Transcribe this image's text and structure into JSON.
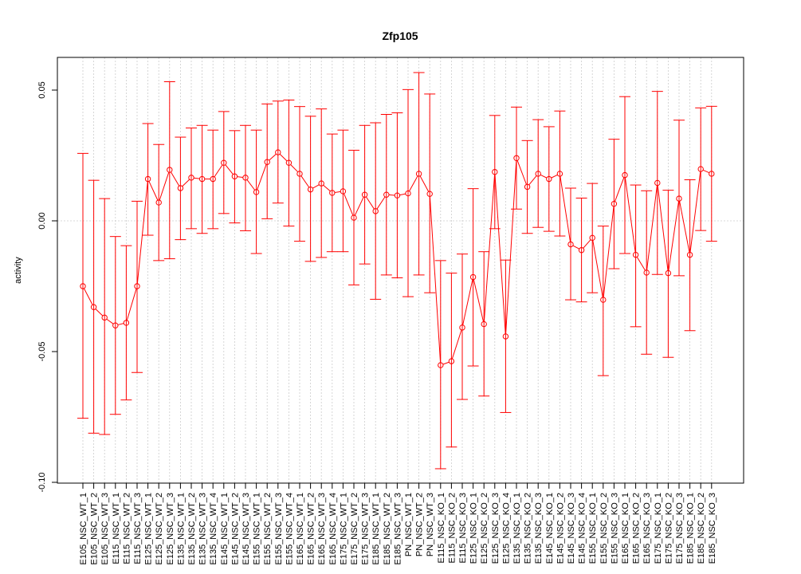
{
  "chart_data": {
    "type": "line",
    "title": "Zfp105",
    "xlabel": "",
    "ylabel": "activity",
    "ylim": [
      -0.1,
      0.06
    ],
    "yticks": [
      -0.1,
      -0.05,
      0.0,
      0.05
    ],
    "ytick_labels": [
      "-0.10",
      "-0.05",
      "0.00",
      "0.05"
    ],
    "grid": true,
    "colors": {
      "series": "#ff0000",
      "grid": "#cccccc",
      "axis": "#000000"
    },
    "categories": [
      "E105_NSC_WT_1",
      "E105_NSC_WT_2",
      "E105_NSC_WT_3",
      "E115_NSC_WT_1",
      "E115_NSC_WT_2",
      "E115_NSC_WT_3",
      "E125_NSC_WT_1",
      "E125_NSC_WT_2",
      "E125_NSC_WT_3",
      "E135_NSC_WT_1",
      "E135_NSC_WT_2",
      "E135_NSC_WT_3",
      "E135_NSC_WT_4",
      "E145_NSC_WT_1",
      "E145_NSC_WT_2",
      "E145_NSC_WT_3",
      "E155_NSC_WT_1",
      "E155_NSC_WT_2",
      "E155_NSC_WT_3",
      "E155_NSC_WT_4",
      "E165_NSC_WT_1",
      "E165_NSC_WT_2",
      "E165_NSC_WT_3",
      "E165_NSC_WT_4",
      "E175_NSC_WT_1",
      "E175_NSC_WT_2",
      "E175_NSC_WT_3",
      "E185_NSC_WT_1",
      "E185_NSC_WT_2",
      "E185_NSC_WT_3",
      "PN_NSC_WT_1",
      "PN_NSC_WT_2",
      "PN_NSC_WT_3",
      "E115_NSC_KO_1",
      "E115_NSC_KO_2",
      "E115_NSC_KO_3",
      "E125_NSC_KO_1",
      "E125_NSC_KO_2",
      "E125_NSC_KO_3",
      "E125_NSC_KO_4",
      "E135_NSC_KO_1",
      "E135_NSC_KO_2",
      "E135_NSC_KO_3",
      "E145_NSC_KO_1",
      "E145_NSC_KO_2",
      "E145_NSC_KO_3",
      "E145_NSC_KO_4",
      "E155_NSC_KO_1",
      "E155_NSC_KO_2",
      "E155_NSC_KO_3",
      "E165_NSC_KO_1",
      "E165_NSC_KO_2",
      "E165_NSC_KO_3",
      "E175_NSC_KO_1",
      "E175_NSC_KO_2",
      "E175_NSC_KO_3",
      "E185_NSC_KO_1",
      "E185_NSC_KO_2",
      "E185_NSC_KO_3"
    ],
    "series": [
      {
        "values": [
          -0.025,
          -0.033,
          -0.037,
          -0.04,
          -0.039,
          -0.025,
          0.016,
          0.007,
          0.0195,
          0.0125,
          0.0165,
          0.016,
          0.016,
          0.0222,
          0.017,
          0.0165,
          0.011,
          0.0225,
          0.0262,
          0.0222,
          0.018,
          0.012,
          0.0143,
          0.0107,
          0.0113,
          0.0012,
          0.01,
          0.0037,
          0.01,
          0.0097,
          0.0105,
          0.018,
          0.0103,
          -0.0552,
          -0.0537,
          -0.0408,
          -0.0215,
          -0.0395,
          0.0187,
          -0.0442,
          0.024,
          0.013,
          0.018,
          0.016,
          0.018,
          -0.009,
          -0.0112,
          -0.0065,
          -0.0302,
          0.0065,
          0.0175,
          -0.013,
          -0.0198,
          0.0145,
          -0.02,
          0.0085,
          -0.013,
          0.0198,
          0.018
        ],
        "upper": [
          0.0258,
          0.0155,
          0.0085,
          -0.006,
          -0.0095,
          0.0075,
          0.0372,
          0.0292,
          0.0532,
          0.032,
          0.0355,
          0.0365,
          0.0347,
          0.0418,
          0.0345,
          0.0365,
          0.0347,
          0.0447,
          0.0458,
          0.0462,
          0.0437,
          0.04,
          0.0428,
          0.0332,
          0.0347,
          0.027,
          0.0365,
          0.0375,
          0.0407,
          0.0413,
          0.0502,
          0.0567,
          0.0485,
          -0.0152,
          -0.02,
          -0.0127,
          0.0123,
          -0.0118,
          0.0403,
          -0.015,
          0.0435,
          0.0307,
          0.0387,
          0.036,
          0.042,
          0.0125,
          0.0087,
          0.0143,
          -0.002,
          0.0312,
          0.0475,
          0.0137,
          0.0115,
          0.0495,
          0.0117,
          0.0385,
          0.0157,
          0.0432,
          0.0438
        ],
        "lower": [
          -0.0755,
          -0.0812,
          -0.0817,
          -0.074,
          -0.0685,
          -0.058,
          -0.0055,
          -0.0152,
          -0.0145,
          -0.0072,
          -0.003,
          -0.0048,
          -0.003,
          0.0028,
          -0.0008,
          -0.0038,
          -0.0125,
          0.0008,
          0.0068,
          -0.002,
          -0.0078,
          -0.0155,
          -0.014,
          -0.0118,
          -0.0118,
          -0.0245,
          -0.0165,
          -0.03,
          -0.0207,
          -0.0218,
          -0.029,
          -0.0207,
          -0.0275,
          -0.0948,
          -0.0865,
          -0.0683,
          -0.0555,
          -0.067,
          -0.003,
          -0.0733,
          0.0045,
          -0.0048,
          -0.0025,
          -0.004,
          -0.0058,
          -0.0302,
          -0.031,
          -0.0275,
          -0.0592,
          -0.0183,
          -0.0125,
          -0.0405,
          -0.051,
          -0.0205,
          -0.0522,
          -0.021,
          -0.042,
          -0.0037,
          -0.0078
        ]
      }
    ]
  }
}
